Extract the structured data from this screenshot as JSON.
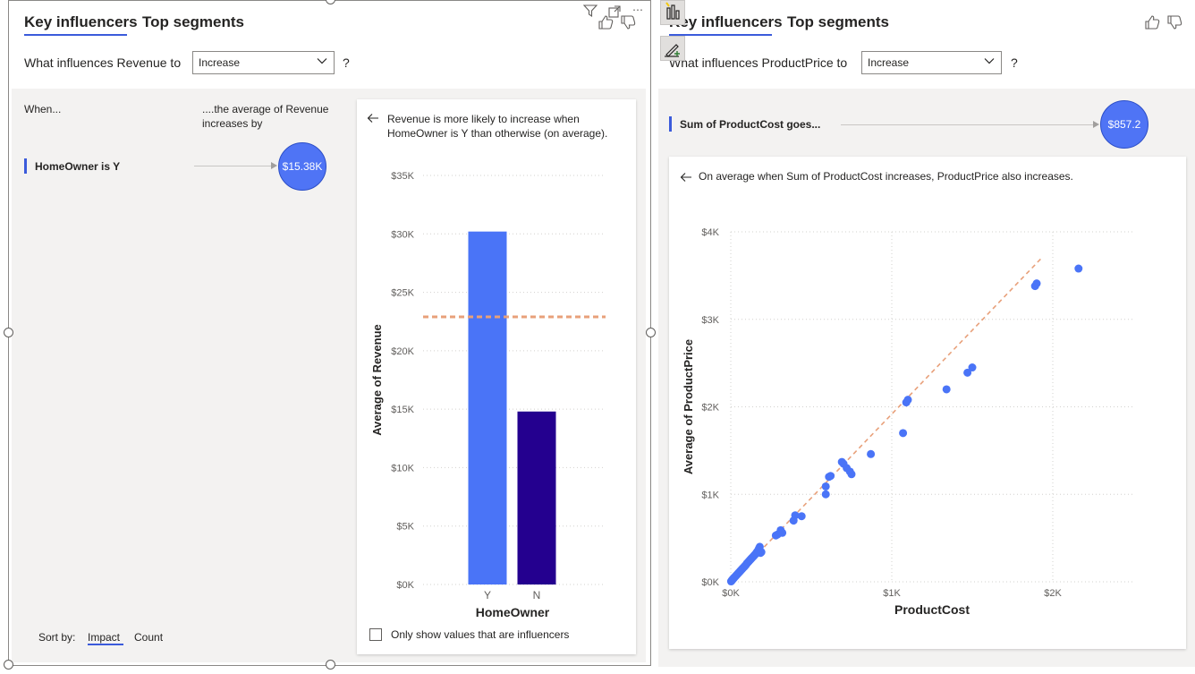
{
  "left_visual": {
    "tabs": [
      {
        "label": "Key influencers"
      },
      {
        "label": "Top segments"
      }
    ],
    "question": {
      "label": "What influences Revenue to",
      "select_value": "Increase",
      "help": "?"
    },
    "columns": {
      "when": "When...",
      "impact_header": "....the average of Revenue increases by"
    },
    "factor": {
      "label": "HomeOwner is Y",
      "value": "$15.38K"
    },
    "sort": {
      "label": "Sort by:",
      "impact": "Impact",
      "count": "Count"
    },
    "detail": {
      "description": "Revenue is more likely to increase when HomeOwner is Y than otherwise (on average).",
      "checkbox_label": "Only show values that are influencers"
    }
  },
  "right_visual": {
    "tabs": [
      {
        "label": "Key influencers"
      },
      {
        "label": "Top segments"
      }
    ],
    "question": {
      "label": "What influences ProductPrice to",
      "select_value": "Increase",
      "help": "?"
    },
    "factor": {
      "label": "Sum of ProductCost goes...",
      "value": "$857.2"
    },
    "detail": {
      "description": "On average when Sum of ProductCost increases, ProductPrice also increases."
    }
  },
  "colors": {
    "accent": "#3b5bdb",
    "bar_y": "#4a74f7",
    "bar_n": "#24008f",
    "avg_line": "#e8a07a",
    "dot": "#4a74f7"
  },
  "chart_data": [
    {
      "type": "bar",
      "title": "",
      "xlabel": "HomeOwner",
      "ylabel": "Average of Revenue",
      "categories": [
        "Y",
        "N"
      ],
      "values": [
        30200,
        14800
      ],
      "bar_colors": [
        "#4a74f7",
        "#24008f"
      ],
      "average_line": 22900,
      "ylim": [
        0,
        35000
      ],
      "yticks": [
        0,
        5000,
        10000,
        15000,
        20000,
        25000,
        30000,
        35000
      ],
      "ytick_labels": [
        "$0K",
        "$5K",
        "$10K",
        "$15K",
        "$20K",
        "$25K",
        "$30K",
        "$35K"
      ],
      "grid": true
    },
    {
      "type": "scatter",
      "title": "",
      "xlabel": "ProductCost",
      "ylabel": "Average of ProductPrice",
      "xlim": [
        0,
        2500
      ],
      "ylim": [
        0,
        4000
      ],
      "xticks": [
        0,
        1000,
        2000
      ],
      "xtick_labels": [
        "$0K",
        "$1K",
        "$2K"
      ],
      "yticks": [
        0,
        1000,
        2000,
        3000,
        4000
      ],
      "ytick_labels": [
        "$0K",
        "$1K",
        "$2K",
        "$3K",
        "$4K"
      ],
      "trend_line": [
        [
          0,
          0
        ],
        [
          1930,
          3700
        ]
      ],
      "points": [
        [
          2,
          5
        ],
        [
          5,
          12
        ],
        [
          8,
          18
        ],
        [
          10,
          22
        ],
        [
          12,
          28
        ],
        [
          15,
          35
        ],
        [
          18,
          40
        ],
        [
          20,
          45
        ],
        [
          25,
          55
        ],
        [
          30,
          65
        ],
        [
          35,
          75
        ],
        [
          40,
          85
        ],
        [
          45,
          95
        ],
        [
          50,
          105
        ],
        [
          55,
          115
        ],
        [
          60,
          125
        ],
        [
          65,
          135
        ],
        [
          70,
          145
        ],
        [
          75,
          155
        ],
        [
          80,
          165
        ],
        [
          85,
          175
        ],
        [
          90,
          185
        ],
        [
          95,
          195
        ],
        [
          100,
          210
        ],
        [
          105,
          220
        ],
        [
          110,
          230
        ],
        [
          115,
          240
        ],
        [
          120,
          250
        ],
        [
          125,
          260
        ],
        [
          130,
          270
        ],
        [
          135,
          280
        ],
        [
          140,
          290
        ],
        [
          145,
          300
        ],
        [
          150,
          310
        ],
        [
          155,
          320
        ],
        [
          160,
          335
        ],
        [
          165,
          345
        ],
        [
          170,
          360
        ],
        [
          175,
          380
        ],
        [
          180,
          400
        ],
        [
          185,
          330
        ],
        [
          190,
          340
        ],
        [
          280,
          530
        ],
        [
          290,
          540
        ],
        [
          310,
          590
        ],
        [
          320,
          560
        ],
        [
          390,
          700
        ],
        [
          400,
          760
        ],
        [
          440,
          750
        ],
        [
          590,
          1000
        ],
        [
          590,
          1090
        ],
        [
          610,
          1200
        ],
        [
          620,
          1210
        ],
        [
          690,
          1370
        ],
        [
          700,
          1350
        ],
        [
          720,
          1300
        ],
        [
          740,
          1260
        ],
        [
          750,
          1230
        ],
        [
          870,
          1460
        ],
        [
          1070,
          1700
        ],
        [
          1090,
          2050
        ],
        [
          1100,
          2080
        ],
        [
          1340,
          2200
        ],
        [
          1470,
          2390
        ],
        [
          1500,
          2450
        ],
        [
          1890,
          3380
        ],
        [
          1900,
          3410
        ],
        [
          2160,
          3580
        ]
      ]
    }
  ]
}
